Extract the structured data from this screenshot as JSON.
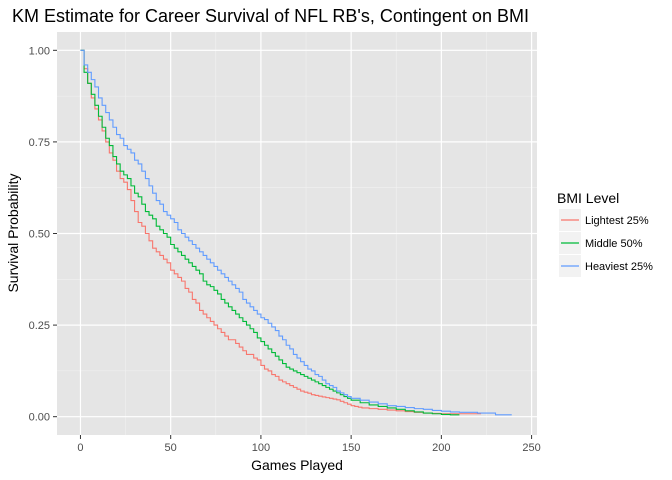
{
  "chart_data": {
    "type": "line",
    "step": true,
    "title": "KM Estimate for Career Survival of NFL RB's, Contingent on BMI",
    "xlabel": "Games Played",
    "ylabel": "Survival Probability",
    "xlim": [
      -13,
      253
    ],
    "ylim": [
      -0.05,
      1.05
    ],
    "x_ticks": [
      0,
      50,
      100,
      150,
      200,
      250
    ],
    "x_tick_labels": [
      "0",
      "50",
      "100",
      "150",
      "200",
      "250"
    ],
    "y_ticks": [
      0,
      0.25,
      0.5,
      0.75,
      1
    ],
    "y_tick_labels": [
      "0.00",
      "0.25",
      "0.50",
      "0.75",
      "1.00"
    ],
    "grid": true,
    "background": "#e5e5e5",
    "legend": {
      "title": "BMI Level",
      "position": "right"
    },
    "series": [
      {
        "name": "Lightest 25%",
        "color": "#f8766d",
        "x": [
          0,
          2,
          4,
          6,
          8,
          10,
          12,
          14,
          16,
          18,
          20,
          22,
          24,
          26,
          28,
          30,
          32,
          34,
          36,
          38,
          40,
          42,
          44,
          46,
          48,
          50,
          52,
          54,
          56,
          58,
          60,
          62,
          64,
          66,
          68,
          70,
          72,
          74,
          76,
          78,
          80,
          82,
          84,
          86,
          88,
          90,
          92,
          94,
          96,
          98,
          100,
          102,
          104,
          106,
          108,
          110,
          112,
          114,
          116,
          118,
          120,
          122,
          124,
          126,
          128,
          130,
          132,
          134,
          136,
          138,
          140,
          142,
          144,
          146,
          148,
          150,
          152,
          154,
          156,
          160,
          165,
          170,
          175,
          180,
          185,
          190,
          195,
          200,
          205,
          210,
          215,
          222
        ],
        "y": [
          1.0,
          0.95,
          0.91,
          0.87,
          0.84,
          0.81,
          0.78,
          0.75,
          0.72,
          0.7,
          0.67,
          0.65,
          0.64,
          0.62,
          0.59,
          0.56,
          0.53,
          0.52,
          0.5,
          0.48,
          0.46,
          0.45,
          0.44,
          0.43,
          0.42,
          0.4,
          0.39,
          0.38,
          0.37,
          0.35,
          0.34,
          0.32,
          0.31,
          0.29,
          0.28,
          0.27,
          0.26,
          0.25,
          0.24,
          0.23,
          0.22,
          0.21,
          0.21,
          0.2,
          0.19,
          0.18,
          0.17,
          0.17,
          0.16,
          0.155,
          0.14,
          0.13,
          0.125,
          0.115,
          0.11,
          0.1,
          0.095,
          0.09,
          0.085,
          0.08,
          0.075,
          0.07,
          0.067,
          0.064,
          0.06,
          0.058,
          0.056,
          0.054,
          0.052,
          0.05,
          0.048,
          0.046,
          0.042,
          0.038,
          0.034,
          0.03,
          0.028,
          0.026,
          0.024,
          0.022,
          0.02,
          0.018,
          0.016,
          0.014,
          0.012,
          0.01,
          0.009,
          0.008,
          0.008,
          0.008,
          0.008,
          0.008
        ]
      },
      {
        "name": "Middle 50%",
        "color": "#00ba38",
        "x": [
          0,
          2,
          4,
          6,
          8,
          10,
          12,
          14,
          16,
          18,
          20,
          22,
          24,
          26,
          28,
          30,
          32,
          34,
          36,
          38,
          40,
          42,
          44,
          46,
          48,
          50,
          52,
          54,
          56,
          58,
          60,
          62,
          64,
          66,
          68,
          70,
          72,
          74,
          76,
          78,
          80,
          82,
          84,
          86,
          88,
          90,
          92,
          94,
          96,
          98,
          100,
          102,
          104,
          106,
          108,
          110,
          112,
          114,
          116,
          118,
          120,
          122,
          124,
          126,
          128,
          130,
          132,
          134,
          136,
          138,
          140,
          142,
          144,
          146,
          148,
          150,
          155,
          160,
          165,
          170,
          175,
          180,
          185,
          190,
          195,
          200,
          205,
          210
        ],
        "y": [
          1.0,
          0.94,
          0.91,
          0.88,
          0.85,
          0.82,
          0.79,
          0.76,
          0.74,
          0.71,
          0.69,
          0.67,
          0.66,
          0.65,
          0.63,
          0.61,
          0.6,
          0.58,
          0.56,
          0.55,
          0.54,
          0.52,
          0.51,
          0.5,
          0.49,
          0.47,
          0.46,
          0.45,
          0.44,
          0.43,
          0.42,
          0.41,
          0.4,
          0.39,
          0.37,
          0.36,
          0.355,
          0.345,
          0.335,
          0.32,
          0.31,
          0.3,
          0.29,
          0.28,
          0.27,
          0.26,
          0.25,
          0.24,
          0.23,
          0.215,
          0.205,
          0.195,
          0.185,
          0.175,
          0.165,
          0.155,
          0.145,
          0.135,
          0.13,
          0.125,
          0.12,
          0.115,
          0.11,
          0.105,
          0.1,
          0.095,
          0.09,
          0.085,
          0.08,
          0.075,
          0.07,
          0.065,
          0.06,
          0.055,
          0.05,
          0.045,
          0.038,
          0.032,
          0.028,
          0.024,
          0.02,
          0.016,
          0.013,
          0.01,
          0.008,
          0.006,
          0.005,
          0.005
        ]
      },
      {
        "name": "Heaviest 25%",
        "color": "#619cff",
        "x": [
          0,
          2,
          4,
          6,
          8,
          10,
          12,
          14,
          16,
          18,
          20,
          22,
          24,
          26,
          28,
          30,
          32,
          34,
          36,
          38,
          40,
          42,
          44,
          46,
          48,
          50,
          52,
          54,
          56,
          58,
          60,
          62,
          64,
          66,
          68,
          70,
          72,
          74,
          76,
          78,
          80,
          82,
          84,
          86,
          88,
          90,
          92,
          94,
          96,
          98,
          100,
          102,
          104,
          106,
          108,
          110,
          112,
          114,
          116,
          118,
          120,
          122,
          124,
          126,
          128,
          130,
          132,
          134,
          136,
          138,
          140,
          142,
          144,
          146,
          148,
          150,
          155,
          160,
          165,
          170,
          175,
          180,
          185,
          190,
          195,
          200,
          205,
          210,
          215,
          220,
          225,
          230,
          239
        ],
        "y": [
          1.0,
          0.96,
          0.94,
          0.92,
          0.9,
          0.87,
          0.85,
          0.83,
          0.81,
          0.79,
          0.77,
          0.76,
          0.74,
          0.73,
          0.72,
          0.7,
          0.69,
          0.67,
          0.65,
          0.63,
          0.61,
          0.59,
          0.58,
          0.56,
          0.55,
          0.54,
          0.53,
          0.51,
          0.5,
          0.49,
          0.48,
          0.47,
          0.46,
          0.45,
          0.44,
          0.43,
          0.42,
          0.41,
          0.4,
          0.39,
          0.38,
          0.37,
          0.36,
          0.35,
          0.34,
          0.32,
          0.31,
          0.3,
          0.29,
          0.28,
          0.27,
          0.265,
          0.255,
          0.245,
          0.235,
          0.22,
          0.21,
          0.195,
          0.185,
          0.17,
          0.16,
          0.15,
          0.14,
          0.13,
          0.125,
          0.115,
          0.11,
          0.1,
          0.09,
          0.085,
          0.08,
          0.07,
          0.065,
          0.06,
          0.055,
          0.05,
          0.045,
          0.04,
          0.035,
          0.03,
          0.028,
          0.025,
          0.022,
          0.02,
          0.017,
          0.015,
          0.013,
          0.012,
          0.012,
          0.01,
          0.01,
          0.005,
          0.005
        ]
      }
    ]
  }
}
